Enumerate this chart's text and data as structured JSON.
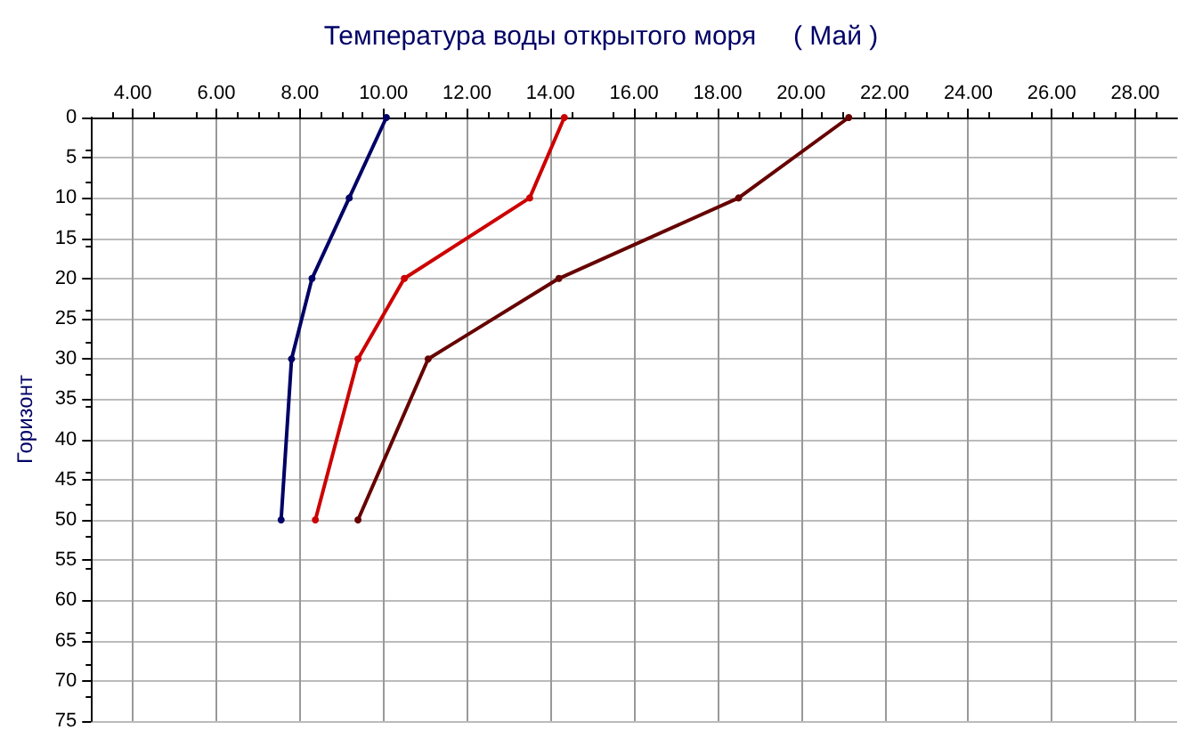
{
  "chart_data": {
    "type": "line",
    "title": "Температура воды открытого моря     ( Май )",
    "ylabel": "Горизонт",
    "series": [
      {
        "color": "#000066",
        "x": [
          10.07,
          9.18,
          8.29,
          7.8,
          7.55
        ],
        "values": [
          0,
          10,
          20,
          30,
          50
        ]
      },
      {
        "color": "#cc0000",
        "x": [
          14.33,
          13.5,
          10.5,
          9.39,
          8.37
        ],
        "values": [
          0,
          10,
          20,
          30,
          50
        ]
      },
      {
        "color": "#660000",
        "x": [
          21.14,
          18.5,
          14.2,
          11.07,
          9.39
        ],
        "values": [
          0,
          10,
          20,
          30,
          50
        ]
      }
    ],
    "xlim": [
      3,
      29
    ],
    "xticks": [
      {
        "value": 4,
        "label": "4.00"
      },
      {
        "value": 6,
        "label": "6.00"
      },
      {
        "value": 8,
        "label": "8.00"
      },
      {
        "value": 10,
        "label": "10.00"
      },
      {
        "value": 12,
        "label": "12.00"
      },
      {
        "value": 14,
        "label": "14.00"
      },
      {
        "value": 16,
        "label": "16.00"
      },
      {
        "value": 18,
        "label": "18.00"
      },
      {
        "value": 20,
        "label": "20.00"
      },
      {
        "value": 22,
        "label": "22.00"
      },
      {
        "value": 24,
        "label": "24.00"
      },
      {
        "value": 26,
        "label": "26.00"
      },
      {
        "value": 28,
        "label": "28.00"
      }
    ],
    "ylim": [
      75,
      0
    ],
    "yticks": [
      0,
      5,
      10,
      15,
      20,
      25,
      30,
      35,
      40,
      45,
      50,
      55,
      60,
      65,
      70,
      75
    ],
    "grid": true,
    "marker": "circle",
    "line_style": "solid"
  }
}
